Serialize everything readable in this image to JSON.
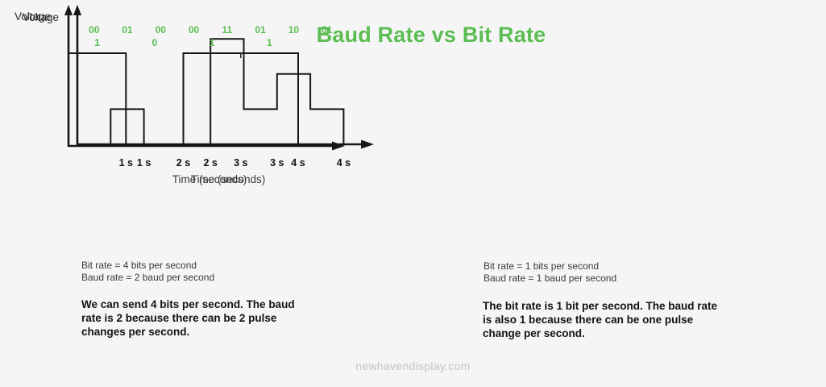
{
  "title": "Baud Rate vs Bit Rate",
  "watermark": "newhavendisplay.com",
  "colors": {
    "accent_green": "#5cbd52",
    "line_black": "#161616",
    "background": "#f5f5f6"
  },
  "charts": [
    {
      "name": "four-bits-per-second-signal",
      "voltage_label": "Voltage",
      "time_label": "Time (seconds)",
      "tick_labels": [
        "1 s",
        "2 s",
        "3 s",
        "4 s"
      ],
      "bit_labels": [
        "00",
        "01",
        "00",
        "00",
        "11",
        "01",
        "10",
        "01"
      ],
      "levels": [
        0,
        1,
        0,
        0,
        3,
        1,
        2,
        1
      ],
      "bit_rate_line": "Bit rate = 4 bits per second",
      "baud_rate_line": "Baud rate = 2 baud per second",
      "description_lines": [
        "We can send 4 bits per second. The baud",
        "rate is 2 because there can be 2 pulse",
        "changes per second."
      ]
    },
    {
      "name": "one-bit-per-second-signal",
      "voltage_label": "Voltage",
      "time_label": "Time (seconds)",
      "tick_labels": [
        "1 s",
        "2 s",
        "3 s",
        "4 s"
      ],
      "bit_labels": [
        "1",
        "0",
        "1",
        "1"
      ],
      "levels": [
        1,
        0,
        1,
        1
      ],
      "bit_rate_line": "Bit rate = 1 bits per second",
      "baud_rate_line": "Baud rate = 1 baud per second",
      "description_lines": [
        "The bit rate is 1 bit per second. The baud rate",
        "is also 1 because there can be one pulse",
        "change per second."
      ]
    }
  ],
  "chart_data": [
    {
      "type": "line",
      "subtype": "step-signal",
      "xlabel": "Time (seconds)",
      "ylabel": "Voltage",
      "x_ticks": [
        "1 s",
        "2 s",
        "3 s",
        "4 s"
      ],
      "x_range_seconds": [
        0,
        4
      ],
      "seconds_per_symbol": 0.5,
      "symbols": [
        "00",
        "01",
        "00",
        "00",
        "11",
        "01",
        "10",
        "01"
      ],
      "voltage_levels": [
        0,
        1,
        0,
        0,
        3,
        1,
        2,
        1
      ]
    },
    {
      "type": "line",
      "subtype": "step-signal",
      "xlabel": "Time (seconds)",
      "ylabel": "Voltage",
      "x_ticks": [
        "1 s",
        "2 s",
        "3 s",
        "4 s"
      ],
      "x_range_seconds": [
        0,
        4
      ],
      "seconds_per_symbol": 1,
      "symbols": [
        "1",
        "0",
        "1",
        "1"
      ],
      "voltage_levels": [
        1,
        0,
        1,
        1
      ]
    }
  ]
}
